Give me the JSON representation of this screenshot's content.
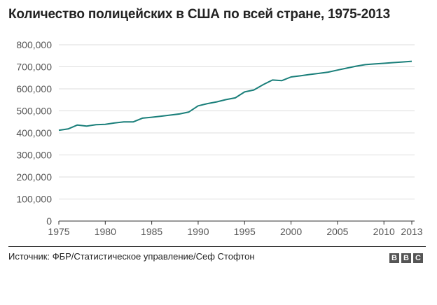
{
  "chart_data": {
    "type": "line",
    "title": "Количество полицейских в США по всей стране, 1975-2013",
    "xlabel": "",
    "ylabel": "",
    "x_ticks": [
      1975,
      1980,
      1985,
      1990,
      1995,
      2000,
      2005,
      2010,
      2013
    ],
    "x_tick_labels": [
      "1975",
      "1980",
      "1985",
      "1990",
      "1995",
      "2000",
      "2005",
      "2010",
      "2013"
    ],
    "y_ticks": [
      0,
      100000,
      200000,
      300000,
      400000,
      500000,
      600000,
      700000,
      800000
    ],
    "y_tick_labels": [
      "0",
      "100,000",
      "200,000",
      "300,000",
      "400,000",
      "500,000",
      "600,000",
      "700,000",
      "800,000"
    ],
    "xlim": [
      1975,
      2013
    ],
    "ylim": [
      0,
      800000
    ],
    "grid": "horizontal",
    "series": [
      {
        "color": "#1a7f7a",
        "x": [
          1975,
          1976,
          1977,
          1978,
          1979,
          1980,
          1981,
          1982,
          1983,
          1984,
          1985,
          1986,
          1987,
          1988,
          1989,
          1990,
          1991,
          1992,
          1993,
          1994,
          1995,
          1996,
          1997,
          1998,
          1999,
          2000,
          2001,
          2002,
          2003,
          2004,
          2005,
          2006,
          2007,
          2008,
          2009,
          2010,
          2011,
          2012,
          2013
        ],
        "values": [
          412000,
          418000,
          436000,
          431000,
          437000,
          439000,
          445000,
          450000,
          450000,
          467000,
          471000,
          476000,
          481000,
          486000,
          495000,
          523000,
          533000,
          541000,
          551000,
          559000,
          586000,
          595000,
          619000,
          640000,
          637000,
          654000,
          659000,
          665000,
          670000,
          676000,
          685000,
          694000,
          703000,
          710000,
          713000,
          716000,
          719000,
          722000,
          725000
        ]
      }
    ]
  },
  "footer": {
    "source": "Источник: ФБР/Статистическое управление/Сеф Стофтон",
    "logo_letters": [
      "B",
      "B",
      "C"
    ]
  }
}
